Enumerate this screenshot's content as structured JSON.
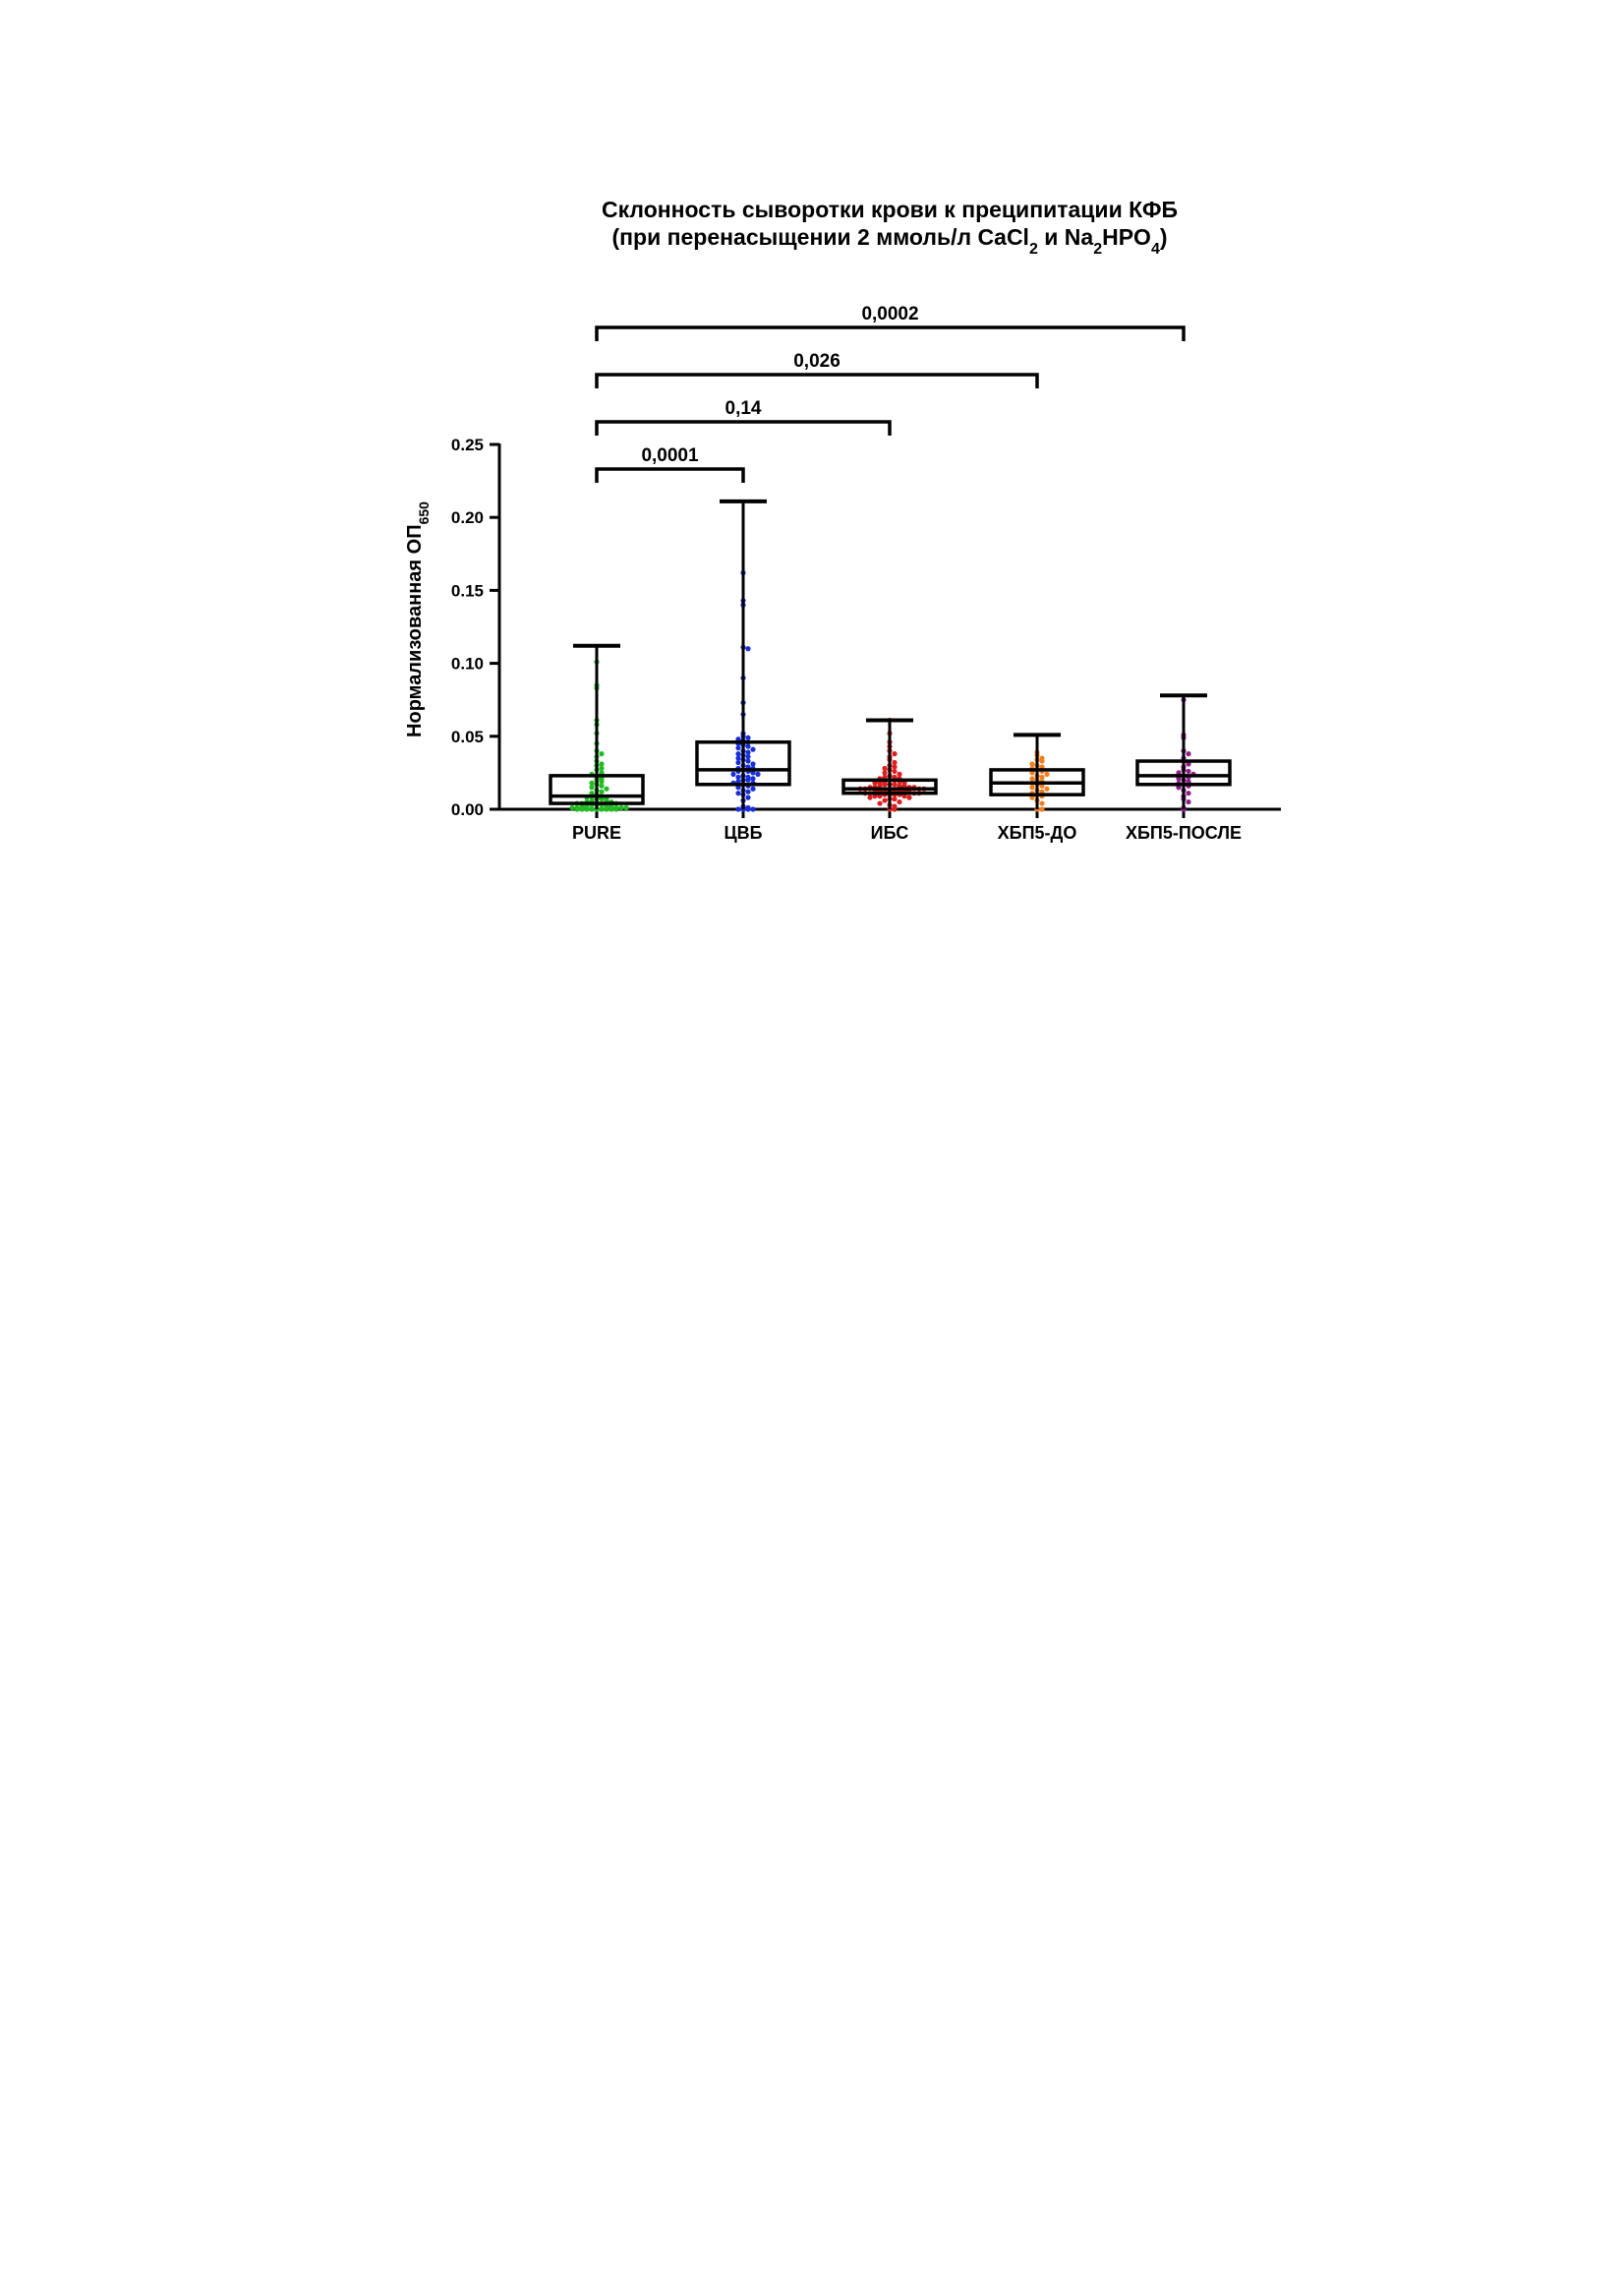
{
  "chart_data": {
    "type": "box",
    "title_line1": "Склонность сыворотки крови к преципитации КФБ",
    "title_line2": {
      "prefix": "(при перенасыщении 2 ммоль/л CaCl",
      "sub1": "2",
      "mid": " и Na",
      "sub2": "2",
      "mid2": "HPO",
      "sub3": "4",
      "suffix": ")"
    },
    "ylabel": {
      "main": "Нормализованная ОП",
      "sub": "650"
    },
    "ylim": [
      0,
      0.25
    ],
    "yticks": [
      "0.00",
      "0.05",
      "0.10",
      "0.15",
      "0.20",
      "0.25"
    ],
    "ytick_values": [
      0,
      0.05,
      0.1,
      0.15,
      0.2,
      0.25
    ],
    "categories": [
      "PURE",
      "ЦВБ",
      "ИБС",
      "ХБП5-ДО",
      "ХБП5-ПОСЛЕ"
    ],
    "groups": [
      {
        "name": "PURE",
        "color": "#22bb22",
        "min": 0.0,
        "q1": 0.004,
        "median": 0.009,
        "q3": 0.023,
        "max": 0.112,
        "points": [
          0.101,
          0.085,
          0.083,
          0.061,
          0.058,
          0.052,
          0.045,
          0.04,
          0.038,
          0.036,
          0.033,
          0.031,
          0.03,
          0.028,
          0.027,
          0.025,
          0.024,
          0.022,
          0.021,
          0.02,
          0.019,
          0.018,
          0.017,
          0.016,
          0.015,
          0.014,
          0.013,
          0.012,
          0.011,
          0.01,
          0.009,
          0.009,
          0.008,
          0.008,
          0.007,
          0.007,
          0.006,
          0.006,
          0.005,
          0.005,
          0.004,
          0.004,
          0.004,
          0.003,
          0.003,
          0.003,
          0.002,
          0.002,
          0.002,
          0.002,
          0.001,
          0.001,
          0.001,
          0.001,
          0.001,
          0.0,
          0.0,
          0.0,
          0.0,
          0.0,
          0.0,
          0.0,
          0.0,
          0.0
        ]
      },
      {
        "name": "ЦВБ",
        "color": "#1a2ed8",
        "min": 0.0,
        "q1": 0.017,
        "median": 0.027,
        "q3": 0.046,
        "max": 0.211,
        "points": [
          0.162,
          0.143,
          0.14,
          0.111,
          0.11,
          0.09,
          0.073,
          0.065,
          0.052,
          0.05,
          0.049,
          0.048,
          0.047,
          0.046,
          0.045,
          0.044,
          0.043,
          0.042,
          0.041,
          0.04,
          0.039,
          0.038,
          0.037,
          0.036,
          0.035,
          0.034,
          0.033,
          0.032,
          0.031,
          0.03,
          0.029,
          0.028,
          0.028,
          0.027,
          0.026,
          0.026,
          0.025,
          0.024,
          0.024,
          0.023,
          0.022,
          0.022,
          0.021,
          0.02,
          0.02,
          0.019,
          0.018,
          0.018,
          0.017,
          0.016,
          0.015,
          0.014,
          0.013,
          0.012,
          0.011,
          0.01,
          0.008,
          0.006,
          0.002,
          0.001,
          0.0,
          0.0,
          0.0,
          0.0
        ]
      },
      {
        "name": "ИБС",
        "color": "#dd1f1f",
        "min": 0.0,
        "q1": 0.011,
        "median": 0.014,
        "q3": 0.02,
        "max": 0.061,
        "points": [
          0.061,
          0.052,
          0.046,
          0.043,
          0.04,
          0.038,
          0.036,
          0.034,
          0.032,
          0.03,
          0.029,
          0.028,
          0.027,
          0.026,
          0.025,
          0.024,
          0.023,
          0.022,
          0.022,
          0.021,
          0.021,
          0.02,
          0.02,
          0.019,
          0.019,
          0.018,
          0.018,
          0.018,
          0.017,
          0.017,
          0.017,
          0.016,
          0.016,
          0.016,
          0.015,
          0.015,
          0.015,
          0.015,
          0.014,
          0.014,
          0.014,
          0.014,
          0.013,
          0.013,
          0.013,
          0.013,
          0.012,
          0.012,
          0.012,
          0.012,
          0.011,
          0.011,
          0.011,
          0.011,
          0.01,
          0.01,
          0.01,
          0.01,
          0.009,
          0.009,
          0.009,
          0.008,
          0.008,
          0.007,
          0.007,
          0.006,
          0.005,
          0.004,
          0.003,
          0.002,
          0.0,
          0.0
        ]
      },
      {
        "name": "ХБП5-ДО",
        "color": "#f07f1f",
        "min": 0.0,
        "q1": 0.01,
        "median": 0.018,
        "q3": 0.027,
        "max": 0.051,
        "points": [
          0.039,
          0.037,
          0.035,
          0.034,
          0.033,
          0.031,
          0.03,
          0.029,
          0.028,
          0.027,
          0.026,
          0.025,
          0.024,
          0.023,
          0.022,
          0.021,
          0.02,
          0.019,
          0.018,
          0.017,
          0.016,
          0.015,
          0.014,
          0.013,
          0.012,
          0.011,
          0.01,
          0.009,
          0.008,
          0.006,
          0.004,
          0.0,
          0.0
        ]
      },
      {
        "name": "ХБП5-ПОСЛЕ",
        "color": "#8c1f8c",
        "min": 0.0,
        "q1": 0.017,
        "median": 0.023,
        "q3": 0.033,
        "max": 0.078,
        "points": [
          0.075,
          0.051,
          0.049,
          0.04,
          0.038,
          0.035,
          0.033,
          0.031,
          0.029,
          0.027,
          0.026,
          0.025,
          0.024,
          0.023,
          0.022,
          0.021,
          0.02,
          0.019,
          0.018,
          0.017,
          0.016,
          0.015,
          0.013,
          0.011,
          0.009,
          0.007,
          0.005,
          0.001,
          0.0
        ]
      }
    ],
    "comparisons": [
      {
        "from": 0,
        "to": 1,
        "label": "0,0001"
      },
      {
        "from": 0,
        "to": 2,
        "label": "0,14"
      },
      {
        "from": 0,
        "to": 3,
        "label": "0,026"
      },
      {
        "from": 0,
        "to": 4,
        "label": "0,0002"
      }
    ]
  }
}
